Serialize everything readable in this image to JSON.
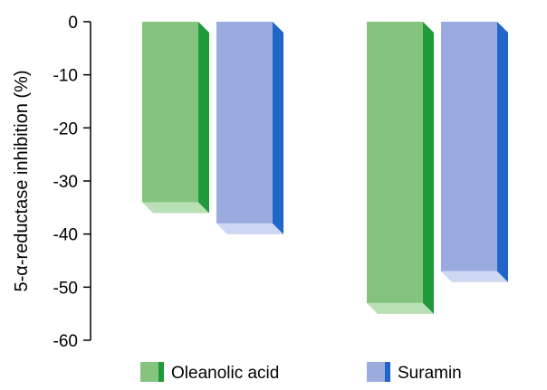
{
  "chart_data": {
    "type": "bar",
    "ylabel": "5-α-reductase inhibition (%)",
    "xlabel": "",
    "title": "",
    "ylim": [
      -60,
      0
    ],
    "yticks": [
      0,
      -10,
      -20,
      -30,
      -40,
      -50,
      -60
    ],
    "grid": false,
    "legend_position": "bottom",
    "groups": [
      "",
      ""
    ],
    "series": [
      {
        "name": "Oleanolic acid",
        "values": [
          -34,
          -53
        ],
        "color_front": "#85c47f",
        "color_side": "#1f9a3a",
        "color_bottom": "#b9dfb4"
      },
      {
        "name": "Suramin",
        "values": [
          -38,
          -47
        ],
        "color_front": "#9aabe0",
        "color_side": "#1f66c8",
        "color_bottom": "#cdd6f2"
      }
    ]
  }
}
